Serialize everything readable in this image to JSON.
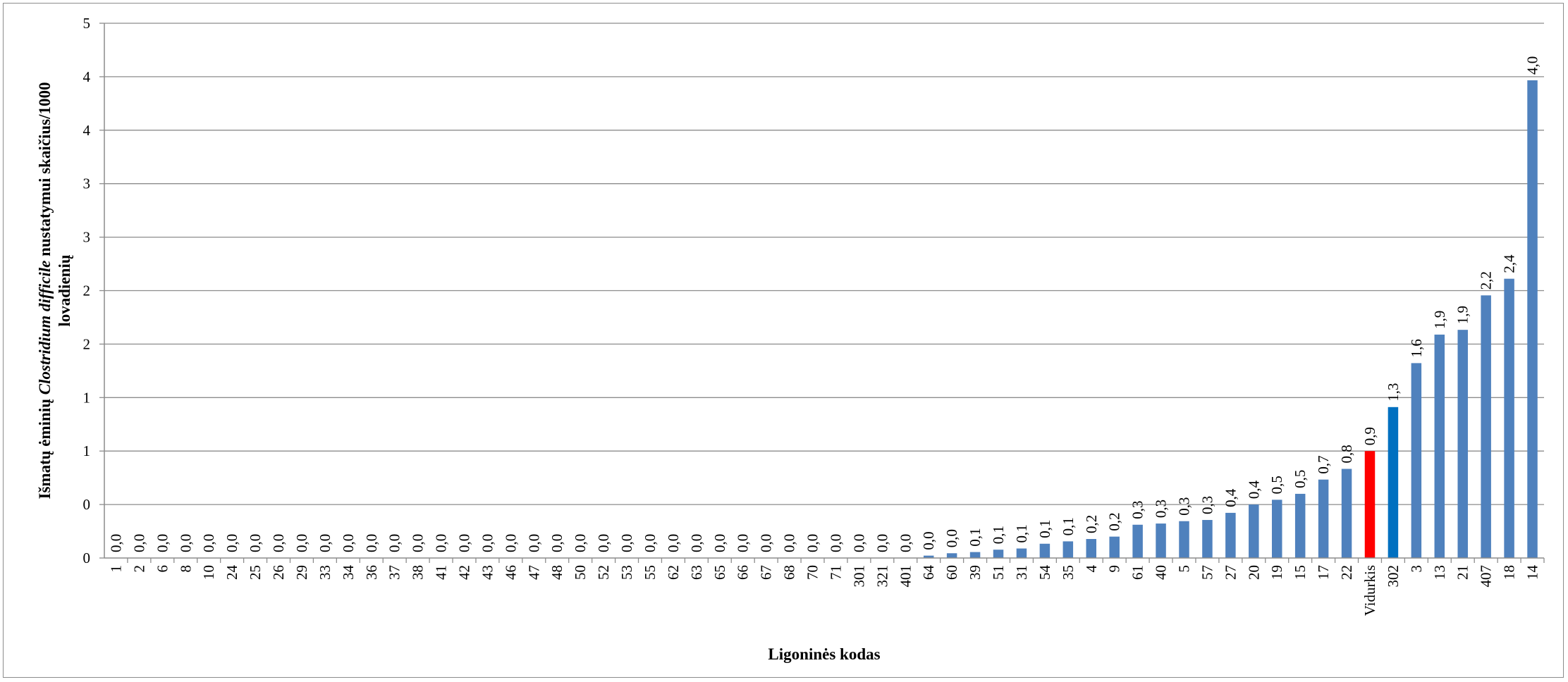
{
  "chart_data": {
    "type": "bar",
    "xlabel": "Ligoninės kodas",
    "ylabel_parts": [
      "Išmatų ėminių ",
      "Clostridium difficile",
      " nustatymui skaičius/1000"
    ],
    "ylabel_line2": "lovadienių",
    "yticks": [
      "0",
      "1",
      "1",
      "2",
      "2",
      "3",
      "3",
      "4",
      "4",
      "5"
    ],
    "ylim": [
      0,
      4.5
    ],
    "grid": true,
    "categories": [
      "1",
      "2",
      "6",
      "8",
      "10",
      "24",
      "25",
      "26",
      "29",
      "33",
      "34",
      "36",
      "37",
      "38",
      "41",
      "42",
      "43",
      "46",
      "47",
      "48",
      "50",
      "52",
      "53",
      "55",
      "62",
      "63",
      "65",
      "66",
      "67",
      "68",
      "70",
      "71",
      "301",
      "321",
      "401",
      "64",
      "60",
      "39",
      "51",
      "31",
      "54",
      "35",
      "4",
      "9",
      "61",
      "40",
      "5",
      "57",
      "27",
      "20",
      "19",
      "15",
      "17",
      "22",
      "Vidurkis",
      "302",
      "3",
      "13",
      "21",
      "407",
      "18",
      "14"
    ],
    "values": [
      0,
      0,
      0,
      0,
      0,
      0,
      0,
      0,
      0,
      0,
      0,
      0,
      0,
      0,
      0,
      0,
      0,
      0,
      0,
      0,
      0,
      0,
      0,
      0,
      0,
      0,
      0,
      0,
      0,
      0,
      0,
      0,
      0,
      0,
      0,
      0.02,
      0.04,
      0.05,
      0.07,
      0.08,
      0.12,
      0.14,
      0.16,
      0.18,
      0.28,
      0.29,
      0.31,
      0.32,
      0.38,
      0.45,
      0.49,
      0.54,
      0.66,
      0.75,
      0.9,
      1.27,
      1.64,
      1.88,
      1.92,
      2.21,
      2.35,
      4.02
    ],
    "data_labels": [
      "0,0",
      "0,0",
      "0,0",
      "0,0",
      "0,0",
      "0,0",
      "0,0",
      "0,0",
      "0,0",
      "0,0",
      "0,0",
      "0,0",
      "0,0",
      "0,0",
      "0,0",
      "0,0",
      "0,0",
      "0,0",
      "0,0",
      "0,0",
      "0,0",
      "0,0",
      "0,0",
      "0,0",
      "0,0",
      "0,0",
      "0,0",
      "0,0",
      "0,0",
      "0,0",
      "0,0",
      "0,0",
      "0,0",
      "0,0",
      "0,0",
      "0,0",
      "0,0",
      "0,1",
      "0,1",
      "0,1",
      "0,1",
      "0,1",
      "0,2",
      "0,2",
      "0,3",
      "0,3",
      "0,3",
      "0,3",
      "0,4",
      "0,4",
      "0,5",
      "0,5",
      "0,7",
      "0,8",
      "0,9",
      "1,3",
      "1,6",
      "1,9",
      "1,9",
      "2,2",
      "2,4",
      "4,0"
    ],
    "colors": {
      "default": "#4f81bd",
      "Vidurkis": "#ff0000",
      "302": "#0070c0"
    }
  }
}
